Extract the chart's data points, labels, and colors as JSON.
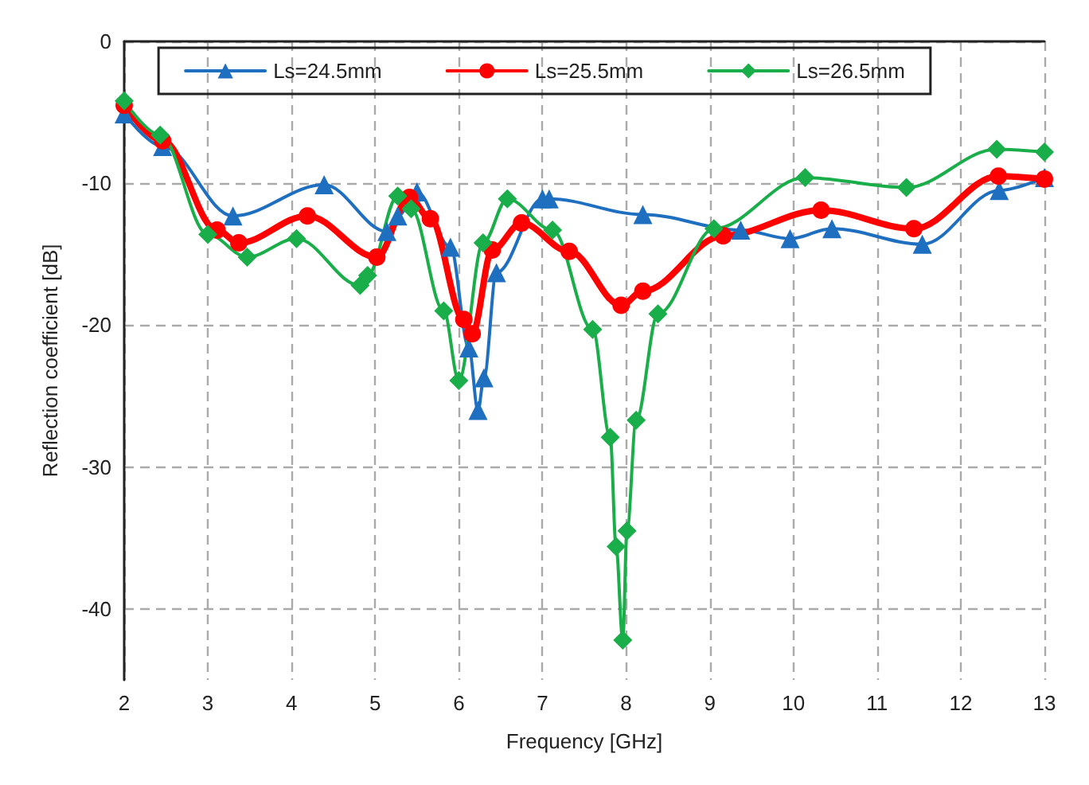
{
  "chart_data": {
    "type": "line",
    "xlabel": "Frequency [GHz]",
    "ylabel": "Reflection coefficient [dB]",
    "xlim": [
      2,
      13
    ],
    "xticks": [
      2,
      3,
      4,
      5,
      6,
      7,
      8,
      9,
      10,
      11,
      12,
      13
    ],
    "ylim": [
      -45,
      0
    ],
    "yticks": [
      -40,
      -30,
      -20,
      -10,
      0
    ],
    "grid": true,
    "legend": "top",
    "line_style": "solid",
    "series": [
      {
        "name": "Ls=24.5mm",
        "color": "#1f6fc0",
        "marker": "triangle",
        "x": [
          2,
          2.46,
          3.3,
          4.39,
          5.14,
          5.27,
          5.5,
          5.9,
          6.12,
          6.23,
          6.3,
          6.45,
          7.0,
          7.08,
          8.2,
          9.37,
          9.96,
          10.46,
          11.54,
          12.46,
          13
        ],
        "values": [
          -5.1,
          -7.4,
          -12.3,
          -10.1,
          -13.4,
          -12.3,
          -10.6,
          -14.5,
          -21.6,
          -26,
          -23.7,
          -16.3,
          -11.1,
          -11.1,
          -12.2,
          -13.3,
          -13.9,
          -13.2,
          -14.3,
          -10.5,
          -9.6
        ]
      },
      {
        "name": "Ls=25.5mm",
        "color": "#ff0000",
        "marker": "circle",
        "x": [
          2,
          2.46,
          3.11,
          3.37,
          4.19,
          5.02,
          5.41,
          5.66,
          6.06,
          6.16,
          6.4,
          6.75,
          7.32,
          7.94,
          8.2,
          9.16,
          10.33,
          11.44,
          12.45,
          13
        ],
        "values": [
          -4.5,
          -7,
          -13.3,
          -14.2,
          -12.3,
          -15.2,
          -11,
          -12.5,
          -19.6,
          -20.6,
          -14.7,
          -12.8,
          -14.8,
          -18.6,
          -17.6,
          -13.7,
          -11.9,
          -13.2,
          -9.5,
          -9.7
        ]
      },
      {
        "name": "Ls=26.5mm",
        "color": "#1aae4a",
        "marker": "diamond",
        "x": [
          2,
          2.43,
          3.0,
          3.47,
          4.06,
          4.82,
          4.91,
          5.27,
          5.43,
          5.82,
          6.0,
          6.29,
          6.58,
          7.12,
          7.6,
          7.81,
          7.88,
          7.96,
          8.01,
          8.12,
          8.38,
          9.05,
          10.14,
          11.35,
          12.43,
          13
        ],
        "values": [
          -4.2,
          -6.6,
          -13.6,
          -15.2,
          -13.9,
          -17.2,
          -16.5,
          -10.9,
          -11.8,
          -19,
          -23.9,
          -14.2,
          -11.1,
          -13.3,
          -20.3,
          -27.9,
          -35.6,
          -42.2,
          -34.5,
          -26.7,
          -19.2,
          -13.2,
          -9.6,
          -10.3,
          -7.6,
          -7.8
        ]
      }
    ]
  }
}
